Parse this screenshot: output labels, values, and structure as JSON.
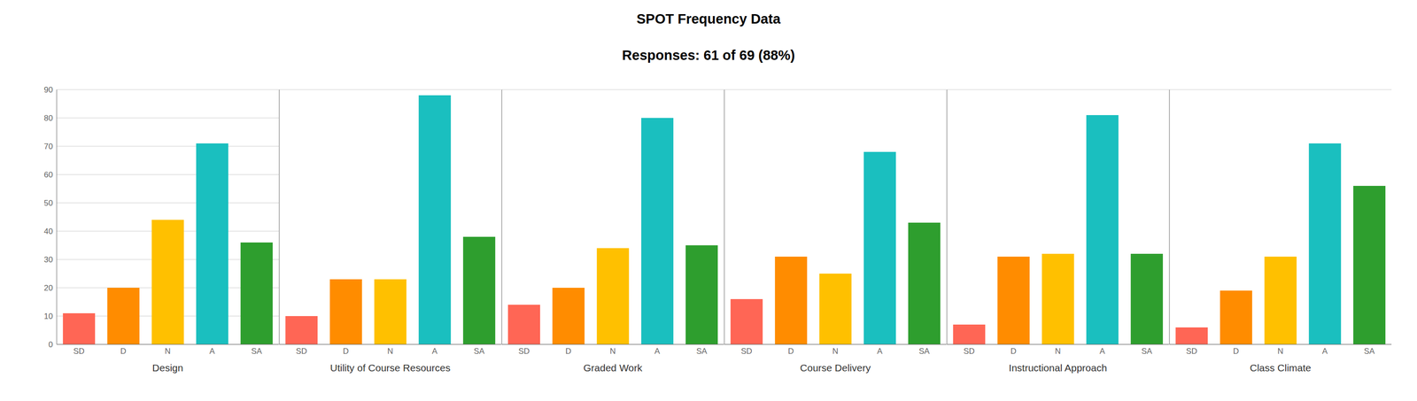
{
  "chart_data": [
    {
      "type": "bar",
      "title": "SPOT Frequency Data",
      "subtitle": "Responses: 61 of 69 (88%)",
      "xlabel": "Design",
      "categories": [
        "SD",
        "D",
        "N",
        "A",
        "SA"
      ],
      "values": [
        11,
        20,
        44,
        71,
        36
      ],
      "colors": [
        "#FF6655",
        "#FF8C00",
        "#FFC000",
        "#1ABFBF",
        "#2E9E2E"
      ],
      "ylim": [
        0,
        90
      ],
      "yticks": [
        0,
        10,
        20,
        30,
        40,
        50,
        60,
        70,
        80,
        90
      ],
      "grid": true
    },
    {
      "type": "bar",
      "xlabel": "Utility of Course Resources",
      "categories": [
        "SD",
        "D",
        "N",
        "A",
        "SA"
      ],
      "values": [
        10,
        23,
        23,
        88,
        38
      ],
      "colors": [
        "#FF6655",
        "#FF8C00",
        "#FFC000",
        "#1ABFBF",
        "#2E9E2E"
      ],
      "ylim": [
        0,
        90
      ],
      "yticks": [
        0,
        10,
        20,
        30,
        40,
        50,
        60,
        70,
        80,
        90
      ],
      "grid": true,
      "tick_labels": "x"
    },
    {
      "type": "bar",
      "xlabel": "Graded Work",
      "categories": [
        "SD",
        "D",
        "N",
        "A",
        "SA"
      ],
      "values": [
        14,
        20,
        34,
        80,
        35
      ],
      "colors": [
        "#FF6655",
        "#FF8C00",
        "#FFC000",
        "#1ABFBF",
        "#2E9E2E"
      ],
      "ylim": [
        0,
        90
      ],
      "yticks": [
        0,
        10,
        20,
        30,
        40,
        50,
        60,
        70,
        80,
        90
      ],
      "grid": true,
      "tick_labels": "x"
    },
    {
      "type": "bar",
      "xlabel": "Course Delivery",
      "categories": [
        "SD",
        "D",
        "N",
        "A",
        "SA"
      ],
      "values": [
        16,
        31,
        25,
        68,
        43
      ],
      "colors": [
        "#FF6655",
        "#FF8C00",
        "#FFC000",
        "#1ABFBF",
        "#2E9E2E"
      ],
      "ylim": [
        0,
        90
      ],
      "yticks": [
        0,
        10,
        20,
        30,
        40,
        50,
        60,
        70,
        80,
        90
      ],
      "grid": true,
      "tick_labels": "x"
    },
    {
      "type": "bar",
      "xlabel": "Instructional Approach",
      "categories": [
        "SD",
        "D",
        "N",
        "A",
        "SA"
      ],
      "values": [
        7,
        31,
        32,
        81,
        32
      ],
      "colors": [
        "#FF6655",
        "#FF8C00",
        "#FFC000",
        "#1ABFBF",
        "#2E9E2E"
      ],
      "ylim": [
        0,
        90
      ],
      "yticks": [
        0,
        10,
        20,
        30,
        40,
        50,
        60,
        70,
        80,
        90
      ],
      "grid": true,
      "tick_labels": "x"
    },
    {
      "type": "bar",
      "xlabel": "Class Climate",
      "categories": [
        "SD",
        "D",
        "N",
        "A",
        "SA"
      ],
      "values": [
        6,
        19,
        31,
        71,
        56
      ],
      "colors": [
        "#FF6655",
        "#FF8C00",
        "#FFC000",
        "#1ABFBF",
        "#2E9E2E"
      ],
      "ylim": [
        0,
        90
      ],
      "yticks": [
        0,
        10,
        20,
        30,
        40,
        50,
        60,
        70,
        80,
        90
      ],
      "grid": true,
      "tick_labels": "x"
    }
  ]
}
